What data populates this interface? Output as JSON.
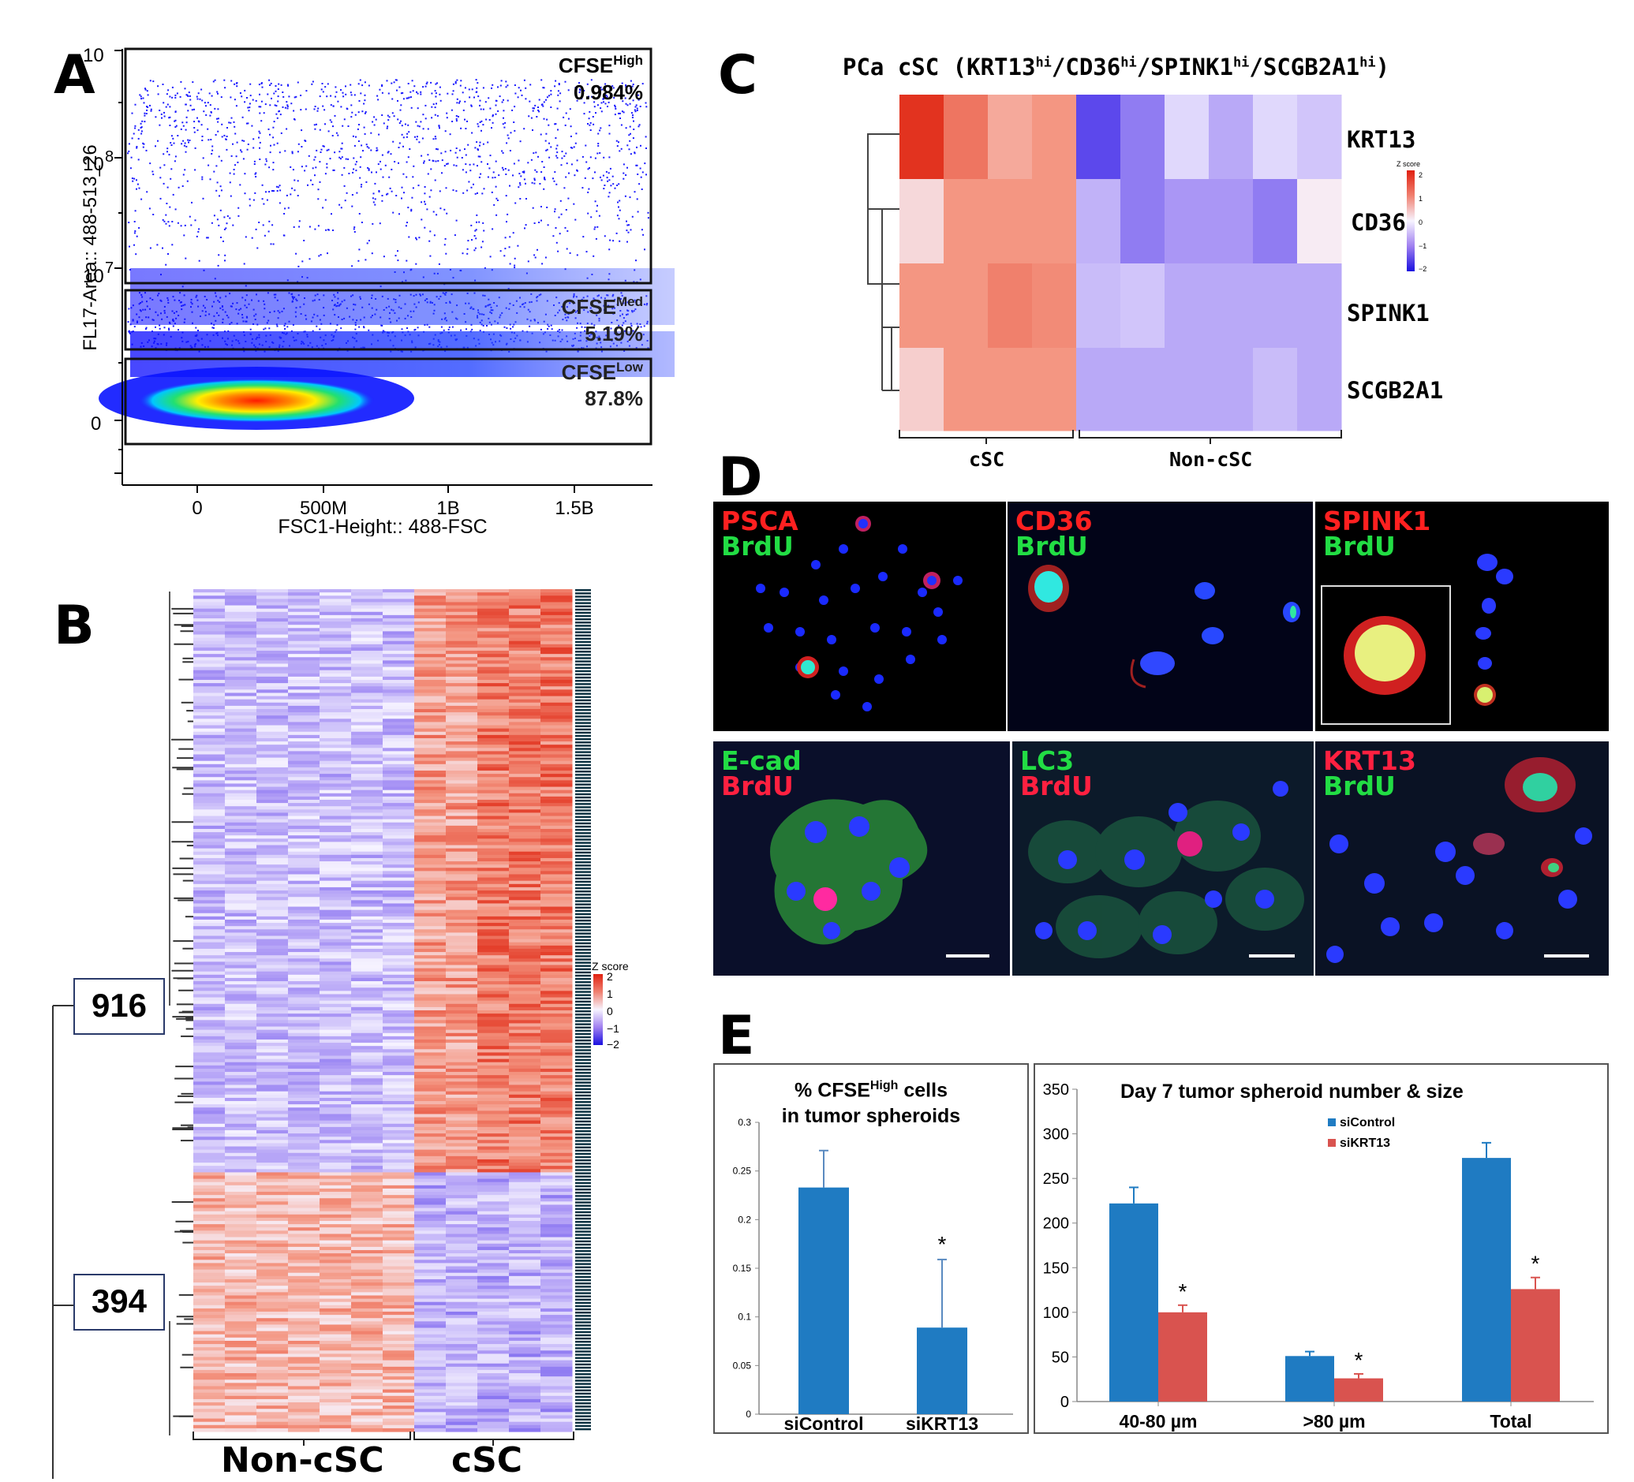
{
  "panels": {
    "a": "A",
    "b": "B",
    "c": "C",
    "d": "D",
    "e": "E"
  },
  "flow": {
    "ylabel": "FL17-Area:: 488-513_26",
    "xlabel": "FSC1-Height:: 488-FSC",
    "xticks": [
      "0",
      "500M",
      "1B",
      "1.5B"
    ],
    "yticks": {
      "t10": "10",
      "t8": "8",
      "t7": "7",
      "t0": "0",
      "base10a": "10",
      "base10b": "10"
    },
    "gates": [
      {
        "name": "CFSE",
        "sup": "High",
        "pct": "0.984%"
      },
      {
        "name": "CFSE",
        "sup": "Med",
        "pct": "5.19%"
      },
      {
        "name": "CFSE",
        "sup": "Low",
        "pct": "87.8%"
      }
    ],
    "colors": {
      "points": "#1a1aff",
      "dense": "#ff2a00",
      "mid": "#00e676"
    }
  },
  "heatmap_b": {
    "groups": [
      "Non-cSC",
      "cSC"
    ],
    "clusters": [
      "916",
      "394"
    ],
    "legend_title": "Z score",
    "legend_ticks": [
      "2",
      "1",
      "0",
      "−1",
      "−2"
    ]
  },
  "heatmap_c": {
    "title": "PCa cSC (KRT13",
    "title_parts": [
      "PCa cSC (KRT13",
      "hi",
      "/CD36",
      "hi",
      "/SPINK1",
      "hi",
      "/SCGB2A1",
      "hi",
      ")"
    ],
    "genes": [
      "KRT13",
      "CD36",
      "SPINK1",
      "SCGB2A1"
    ],
    "groups": [
      "cSC",
      "Non-cSC"
    ],
    "legend_title": "Z score",
    "legend_ticks": [
      "2",
      "1",
      "0",
      "−1",
      "−2"
    ]
  },
  "micrographs": [
    {
      "line1": "PSCA",
      "line2": "BrdU",
      "c1": "#ff2020",
      "c2": "#22dd44"
    },
    {
      "line1": "CD36",
      "line2": "BrdU",
      "c1": "#ff2020",
      "c2": "#22dd44"
    },
    {
      "line1": "SPINK1",
      "line2": "BrdU",
      "c1": "#ff2020",
      "c2": "#22dd44"
    },
    {
      "line1": "E-cad",
      "line2": "BrdU",
      "c1": "#22dd44",
      "c2": "#ff2040"
    },
    {
      "line1": "LC3",
      "line2": "BrdU",
      "c1": "#22dd44",
      "c2": "#ff2040"
    },
    {
      "line1": "KRT13",
      "line2": "BrdU",
      "c1": "#ff2040",
      "c2": "#22dd44"
    }
  ],
  "chart_data": [
    {
      "type": "bar",
      "title_parts": [
        "% CFSE",
        "High",
        " cells",
        "in tumor spheroids"
      ],
      "categories": [
        "siControl",
        "siKRT13"
      ],
      "values": [
        0.233,
        0.089
      ],
      "errors": [
        0.038,
        0.07
      ],
      "significance": [
        "",
        "*"
      ],
      "ylim": [
        0,
        0.3
      ],
      "yticks": [
        "0",
        "0.05",
        "0.1",
        "0.15",
        "0.2",
        "0.25",
        "0.3"
      ],
      "color": "#1f7bc2"
    },
    {
      "type": "bar",
      "title": "Day 7 tumor spheroid number & size",
      "categories": [
        "40-80 µm",
        ">80 µm",
        "Total"
      ],
      "series": [
        {
          "name": "siControl",
          "values": [
            222,
            51,
            273
          ],
          "errors": [
            18,
            5,
            17
          ],
          "color": "#1f7bc2"
        },
        {
          "name": "siKRT13",
          "values": [
            100,
            26,
            126
          ],
          "errors": [
            8,
            5,
            13
          ],
          "color": "#d9534f",
          "significance": [
            "*",
            "*",
            "*"
          ]
        }
      ],
      "ylim": [
        0,
        350
      ],
      "yticks": [
        "0",
        "50",
        "100",
        "150",
        "200",
        "250",
        "300",
        "350"
      ]
    }
  ]
}
